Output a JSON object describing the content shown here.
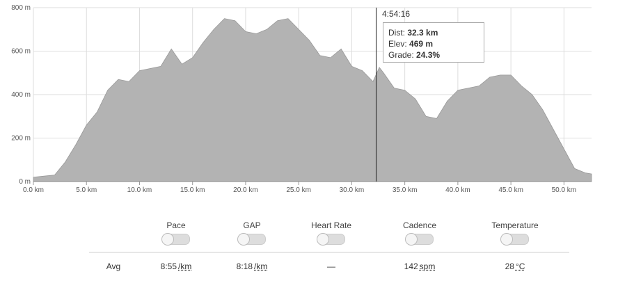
{
  "chart_data": {
    "type": "area",
    "x": [
      0,
      1,
      2,
      3,
      4,
      5,
      6,
      7,
      8,
      9,
      10,
      11,
      12,
      13,
      14,
      15,
      16,
      17,
      18,
      19,
      20,
      21,
      22,
      23,
      24,
      25,
      26,
      27,
      28,
      29,
      30,
      31,
      32,
      32.6,
      33,
      34,
      35,
      36,
      37,
      38,
      39,
      40,
      41,
      42,
      43,
      44,
      45,
      46,
      47,
      48,
      49,
      50,
      51,
      52,
      52.6
    ],
    "values": [
      20,
      25,
      30,
      90,
      170,
      260,
      320,
      420,
      470,
      460,
      510,
      520,
      530,
      610,
      540,
      570,
      640,
      700,
      750,
      740,
      690,
      680,
      700,
      740,
      750,
      700,
      650,
      580,
      570,
      610,
      530,
      510,
      460,
      525,
      500,
      430,
      420,
      380,
      300,
      290,
      370,
      420,
      430,
      440,
      480,
      490,
      490,
      440,
      400,
      330,
      240,
      150,
      60,
      40,
      35
    ],
    "color": "#b3b3b3",
    "xlim": [
      0,
      52.6
    ],
    "ylim": [
      0,
      800
    ],
    "xticks": [
      {
        "value": 0,
        "label": "0.0 km"
      },
      {
        "value": 5,
        "label": "5.0 km"
      },
      {
        "value": 10,
        "label": "10.0 km"
      },
      {
        "value": 15,
        "label": "15.0 km"
      },
      {
        "value": 20,
        "label": "20.0 km"
      },
      {
        "value": 25,
        "label": "25.0 km"
      },
      {
        "value": 30,
        "label": "30.0 km"
      },
      {
        "value": 35,
        "label": "35.0 km"
      },
      {
        "value": 40,
        "label": "40.0 km"
      },
      {
        "value": 45,
        "label": "45.0 km"
      },
      {
        "value": 50,
        "label": "50.0 km"
      }
    ],
    "yticks": [
      {
        "value": 0,
        "label": "0 m"
      },
      {
        "value": 200,
        "label": "200 m"
      },
      {
        "value": 400,
        "label": "400 m"
      },
      {
        "value": 600,
        "label": "600 m"
      },
      {
        "value": 800,
        "label": "800 m"
      }
    ],
    "grid": true,
    "cursor_x": 32.3,
    "tooltip": {
      "time": "4:54:16",
      "rows": [
        {
          "label": "Dist:",
          "value": "32.3 km"
        },
        {
          "label": "Elev:",
          "value": "469 m"
        },
        {
          "label": "Grade:",
          "value": "24.3%"
        }
      ]
    }
  },
  "streams": {
    "toggles": [
      "Pace",
      "GAP",
      "Heart Rate",
      "Cadence",
      "Temperature"
    ],
    "avg_label": "Avg",
    "avgs": [
      {
        "value": "8:55",
        "unit": "/km"
      },
      {
        "value": "8:18",
        "unit": "/km"
      },
      {
        "value": "—"
      },
      {
        "value": "142",
        "unit": "spm"
      },
      {
        "value": "28",
        "unit": "°C"
      }
    ]
  }
}
